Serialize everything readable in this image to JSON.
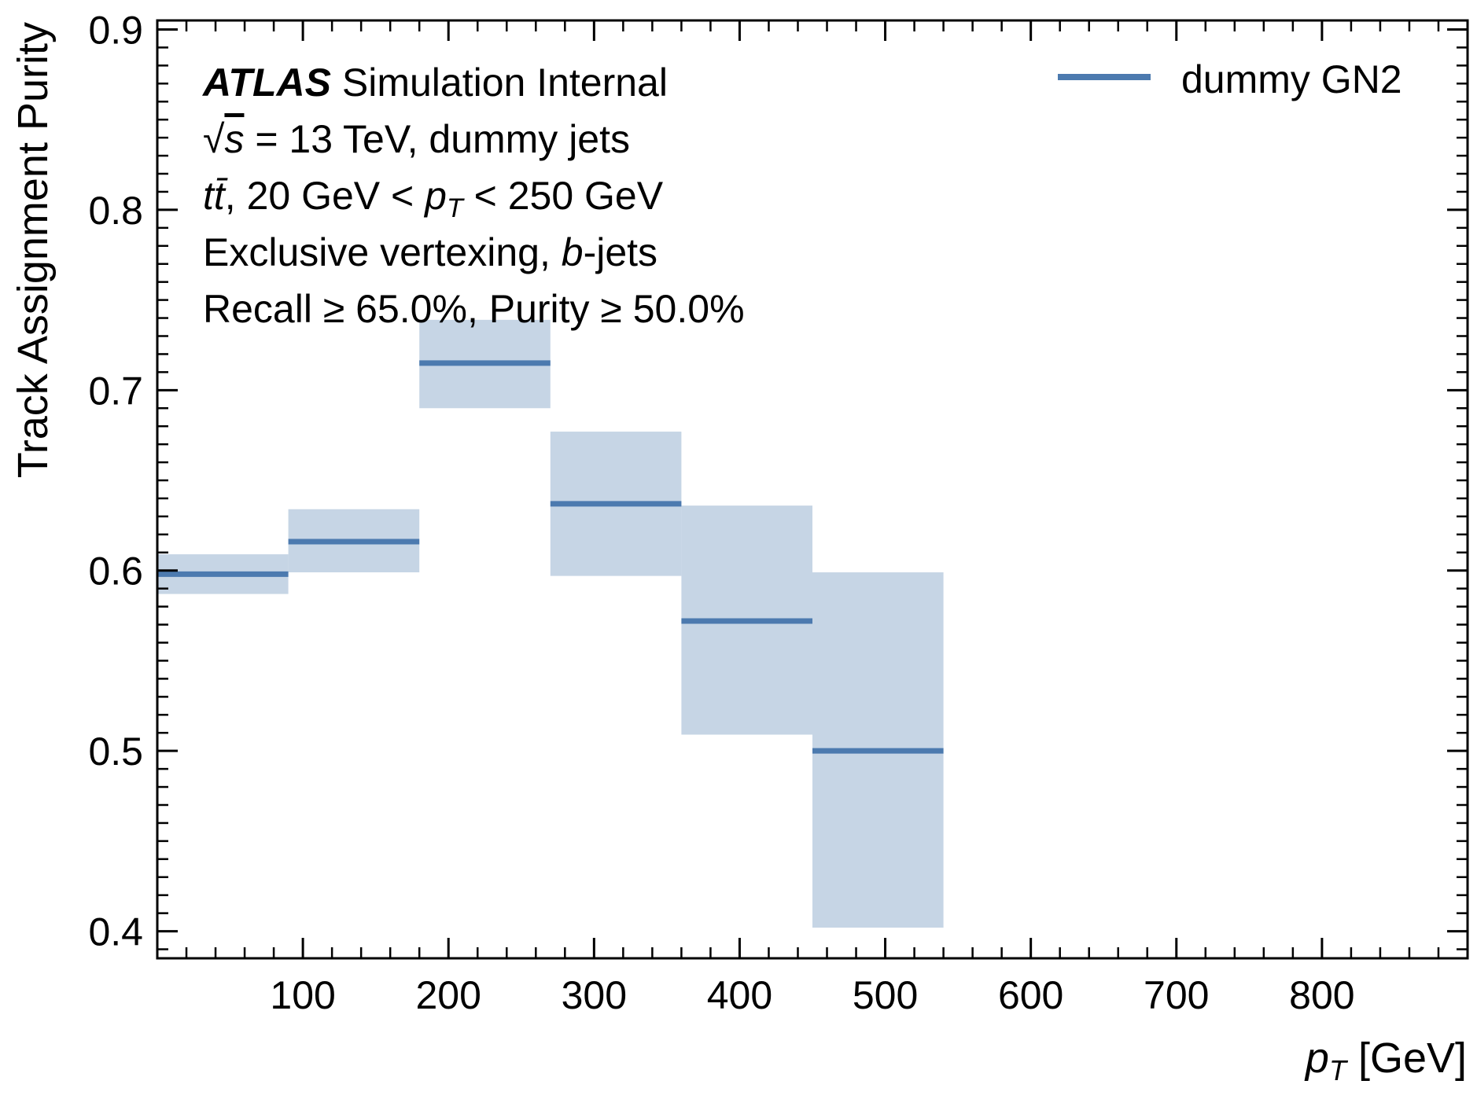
{
  "chart_data": {
    "type": "histogram-step",
    "x_axis": {
      "label_prefix": "p",
      "label_subscript": "T",
      "label_suffix": " [GeV]",
      "range": [
        0,
        900
      ],
      "ticks": [
        100,
        200,
        300,
        400,
        500,
        600,
        700,
        800
      ],
      "tick_labels": [
        "100",
        "200",
        "300",
        "400",
        "500",
        "600",
        "700",
        "800"
      ]
    },
    "y_axis": {
      "label": "Track Assignment Purity",
      "range": [
        0.385,
        0.905
      ],
      "ticks": [
        0.4,
        0.5,
        0.6,
        0.7,
        0.8,
        0.9
      ],
      "tick_labels": [
        "0.4",
        "0.5",
        "0.6",
        "0.7",
        "0.8",
        "0.9"
      ]
    },
    "grid": false,
    "legend_position": "top-right",
    "series": [
      {
        "name": "dummy GN2",
        "color": "#4c7aaf",
        "band_color": "#c6d5e5",
        "bins": [
          {
            "x_low": 0,
            "x_high": 90,
            "value": 0.598,
            "err_low": 0.587,
            "err_high": 0.609
          },
          {
            "x_low": 90,
            "x_high": 180,
            "value": 0.616,
            "err_low": 0.599,
            "err_high": 0.634
          },
          {
            "x_low": 180,
            "x_high": 270,
            "value": 0.715,
            "err_low": 0.69,
            "err_high": 0.739
          },
          {
            "x_low": 270,
            "x_high": 360,
            "value": 0.637,
            "err_low": 0.597,
            "err_high": 0.677
          },
          {
            "x_low": 360,
            "x_high": 450,
            "value": 0.572,
            "err_low": 0.509,
            "err_high": 0.636
          },
          {
            "x_low": 450,
            "x_high": 540,
            "value": 0.5,
            "err_low": 0.402,
            "err_high": 0.599
          }
        ]
      }
    ],
    "annotations": {
      "experiment": "ATLAS",
      "experiment_status": "Simulation Internal",
      "line2_sqrt": "√",
      "line2_s": "s",
      "line2_rest": " = 13 TeV, dummy jets",
      "line3_tt": "tt̄",
      "line3_mid": ", 20 GeV  < ",
      "line3_p": "p",
      "line3_sub": "T",
      "line3_end": " < 250 GeV",
      "line4_start": "Exclusive vertexing, ",
      "line4_b": "b",
      "line4_end": "-jets",
      "line5": "Recall  ≥ 65.0%, Purity  ≥ 50.0%"
    }
  }
}
